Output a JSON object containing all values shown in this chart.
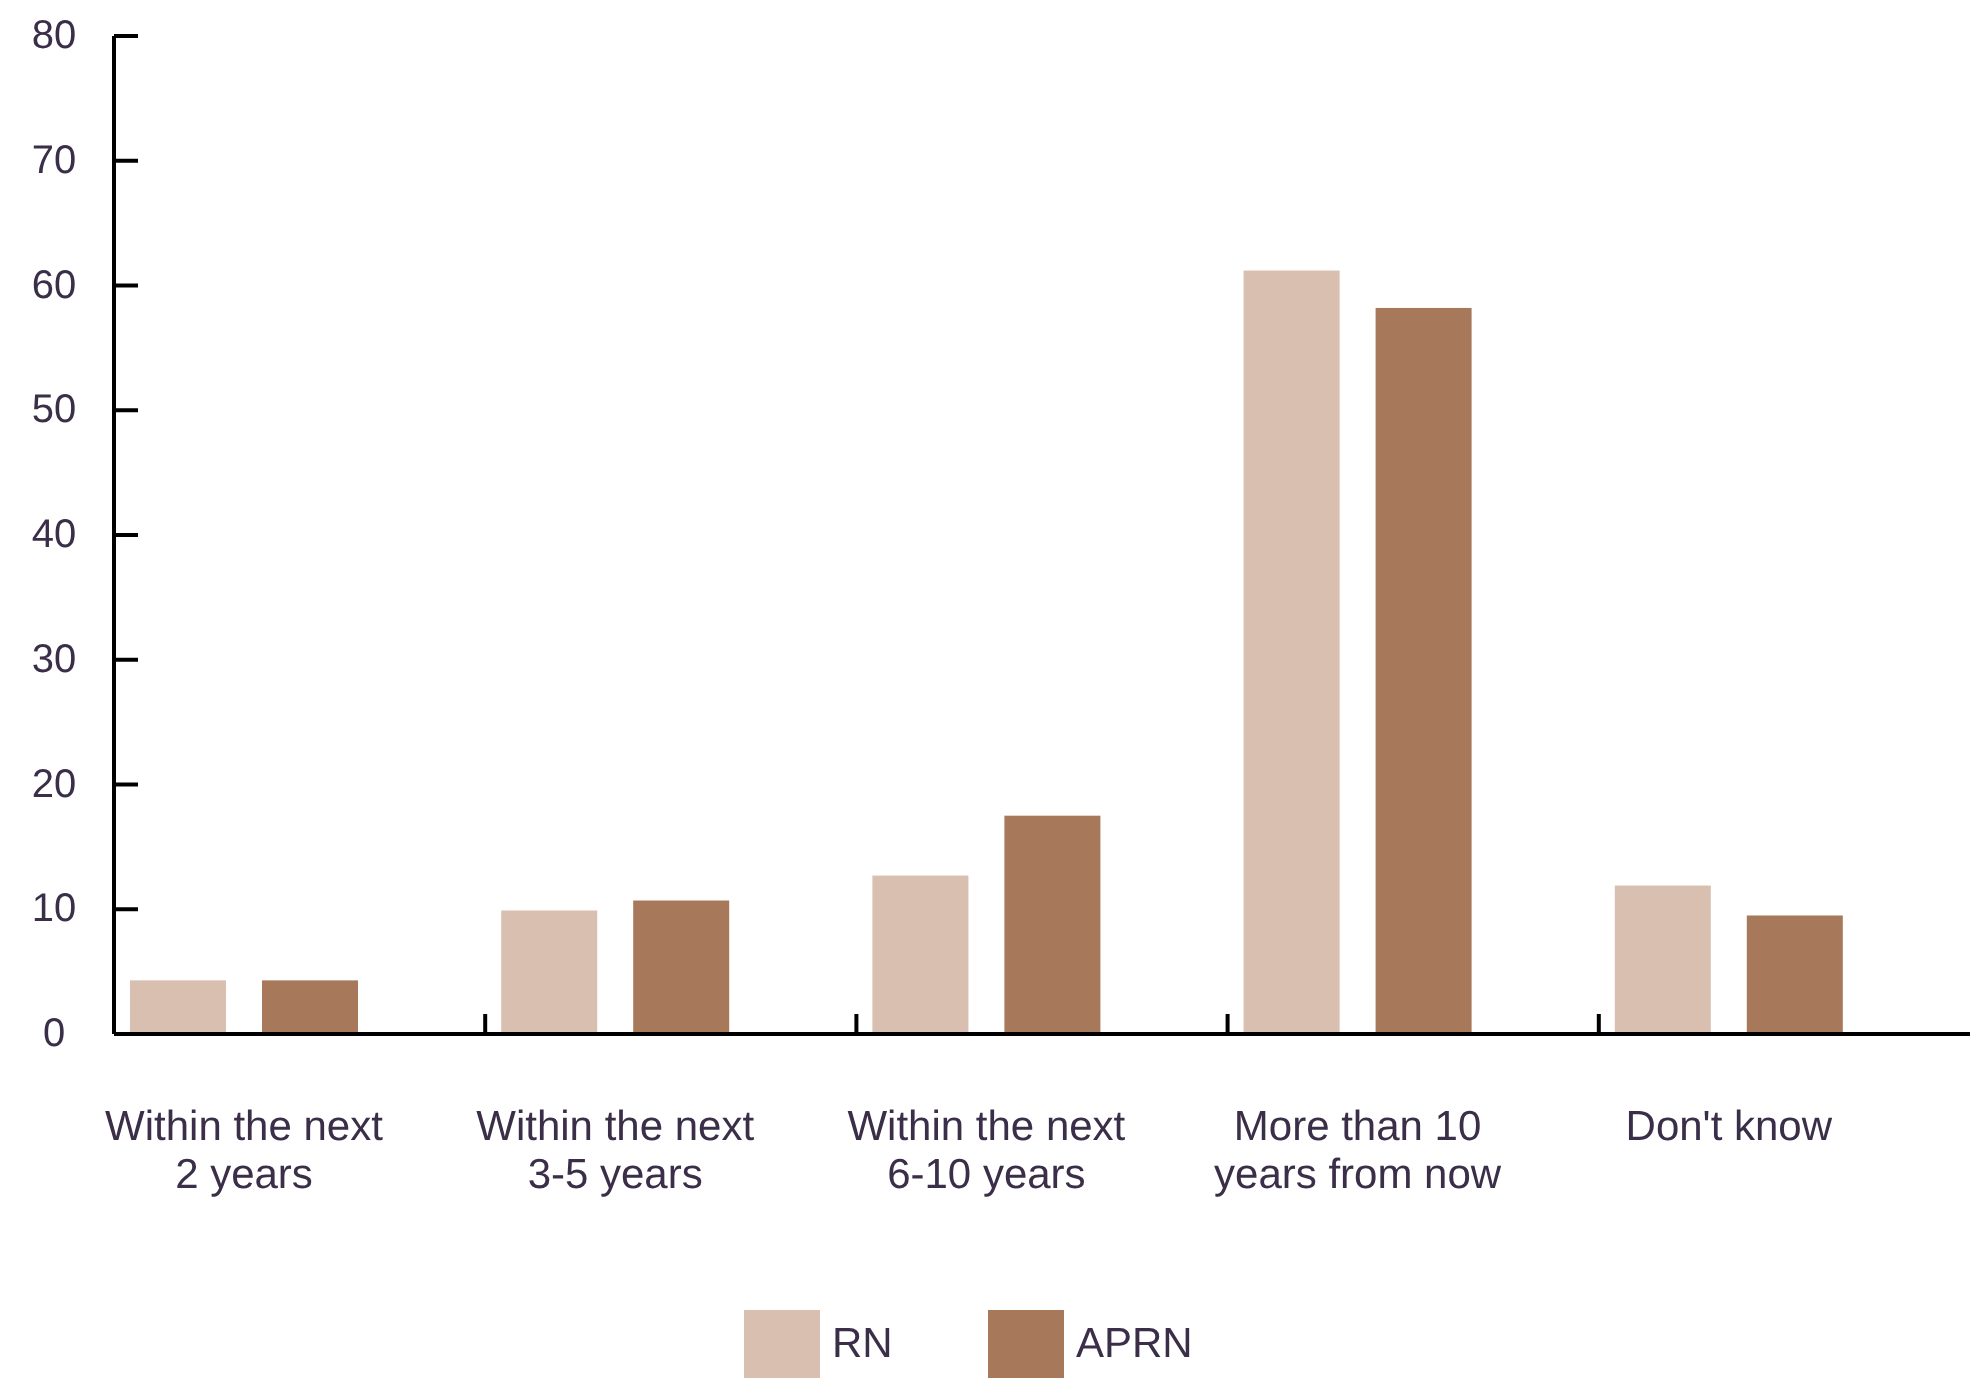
{
  "chart_data": {
    "type": "bar",
    "categories": [
      "Within the next 2 years",
      "Within the next 3-5 years",
      "Within the next 6-10 years",
      "More than 10 years from now",
      "Don't know"
    ],
    "series": [
      {
        "name": "RN",
        "color": "#d8bfb0",
        "values": [
          4.3,
          9.9,
          12.7,
          61.2,
          11.9
        ]
      },
      {
        "name": "APRN",
        "color": "#a8785a",
        "values": [
          4.3,
          10.7,
          17.5,
          58.2,
          9.5
        ]
      }
    ],
    "ylim": [
      0,
      80
    ],
    "yticks": [
      0,
      10,
      20,
      30,
      40,
      50,
      60,
      70,
      80
    ],
    "grid": false,
    "legend": "bottom"
  }
}
